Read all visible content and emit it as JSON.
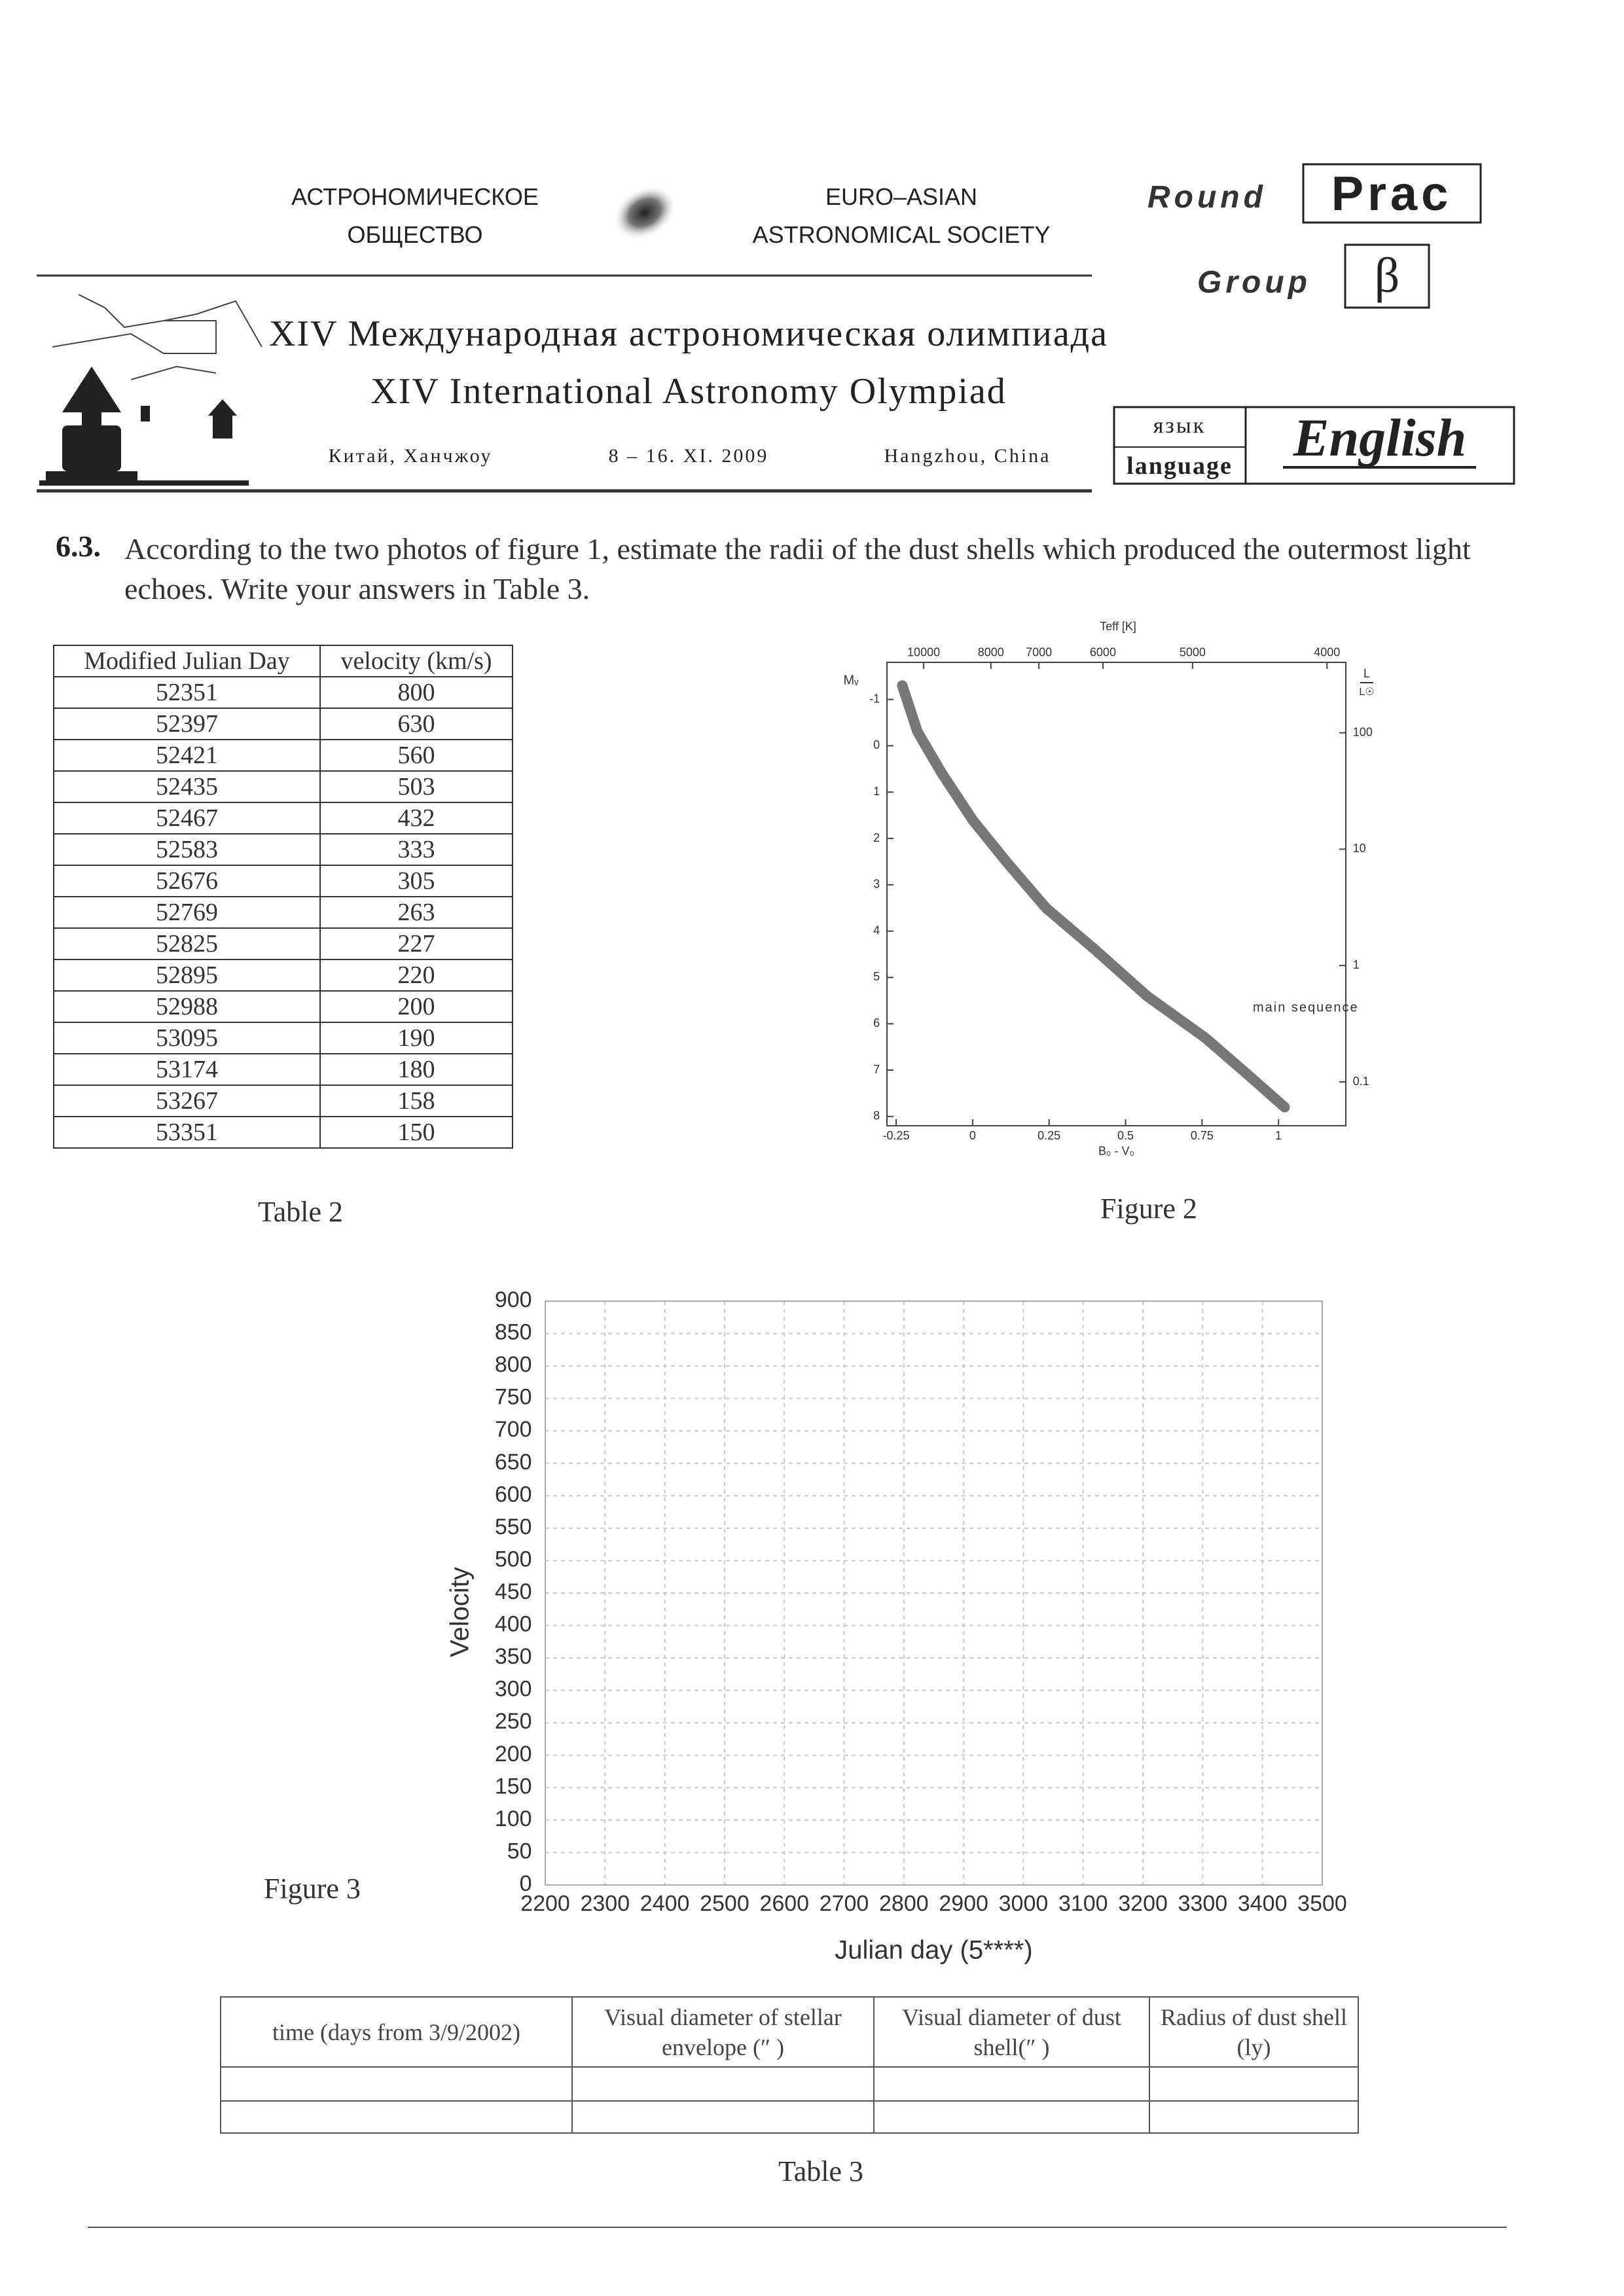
{
  "header": {
    "society_ru": [
      "АСТРОНОМИЧЕСКОЕ",
      "ОБЩЕСТВО"
    ],
    "society_en": [
      "EURO–ASIAN",
      "ASTRONOMICAL SOCIETY"
    ],
    "title_ru": "XIV Международная астрономическая олимпиада",
    "title_en": "XIV International Astronomy Olympiad",
    "place_ru": "Китай, Ханчжоу",
    "dates": "8 – 16. XI. 2009",
    "place_en": "Hangzhou, China",
    "round_label": "Round",
    "round": "Prac",
    "group_label": "Group",
    "group": "β",
    "language_label": [
      "язык",
      "language"
    ],
    "language": "English"
  },
  "question": {
    "number": "6.3.",
    "text": "According to the two photos of figure 1, estimate the radii of the dust shells which produced the outermost light echoes. Write your answers in Table 3."
  },
  "table2": {
    "caption": "Table 2",
    "columns": [
      "Modified Julian Day",
      "velocity (km/s)"
    ],
    "rows": [
      [
        52351,
        800
      ],
      [
        52397,
        630
      ],
      [
        52421,
        560
      ],
      [
        52435,
        503
      ],
      [
        52467,
        432
      ],
      [
        52583,
        333
      ],
      [
        52676,
        305
      ],
      [
        52769,
        263
      ],
      [
        52825,
        227
      ],
      [
        52895,
        220
      ],
      [
        52988,
        200
      ],
      [
        53095,
        190
      ],
      [
        53174,
        180
      ],
      [
        53267,
        158
      ],
      [
        53351,
        150
      ]
    ]
  },
  "chart_data": [
    {
      "type": "line",
      "caption": "Figure 2",
      "xlabel": "B₀ - V₀",
      "ylabel": "Mᵥ",
      "x2label": "Teff [K]",
      "y2label": [
        "L",
        "L☉"
      ],
      "xlim": [
        -0.28,
        1.22
      ],
      "ylim": [
        -1.8,
        8.2
      ],
      "y_inverted": true,
      "xticks": [
        -0.25,
        0,
        0.25,
        0.5,
        0.75,
        1
      ],
      "yticks": [
        -1,
        0,
        1,
        2,
        3,
        4,
        5,
        6,
        7,
        8
      ],
      "x2ticks": [
        10000,
        8000,
        7000,
        6000,
        5000,
        4000
      ],
      "y2scale": "log",
      "y2lim": [
        0.042,
        403
      ],
      "y2ticks": [
        100,
        10,
        1,
        0.1
      ],
      "series": [
        {
          "name": "main sequence",
          "color": "#777777",
          "x": [
            -0.23,
            -0.18,
            -0.1,
            0,
            0.11,
            0.24,
            0.4,
            0.57,
            0.76,
            0.9,
            1.02
          ],
          "values": [
            -1.3,
            -0.3,
            0.6,
            1.6,
            2.5,
            3.5,
            4.4,
            5.4,
            6.3,
            7.1,
            7.8
          ]
        }
      ]
    },
    {
      "type": "line",
      "caption": "Figure 3",
      "xlabel": "Julian day (5****)",
      "ylabel": "Velocity",
      "xlim": [
        2200,
        3500
      ],
      "ylim": [
        0,
        900
      ],
      "grid": true,
      "xticks": [
        2200,
        2300,
        2400,
        2500,
        2600,
        2700,
        2800,
        2900,
        3000,
        3100,
        3200,
        3300,
        3400,
        3500
      ],
      "yticks": [
        0,
        50,
        100,
        150,
        200,
        250,
        300,
        350,
        400,
        450,
        500,
        550,
        600,
        650,
        700,
        750,
        800,
        850,
        900
      ]
    }
  ],
  "table3": {
    "caption": "Table 3",
    "columns": [
      "time (days from 3/9/2002)",
      "Visual diameter of stellar envelope (″ )",
      "Visual diameter of dust shell(″ )",
      "Radius of dust shell (ly)"
    ]
  }
}
